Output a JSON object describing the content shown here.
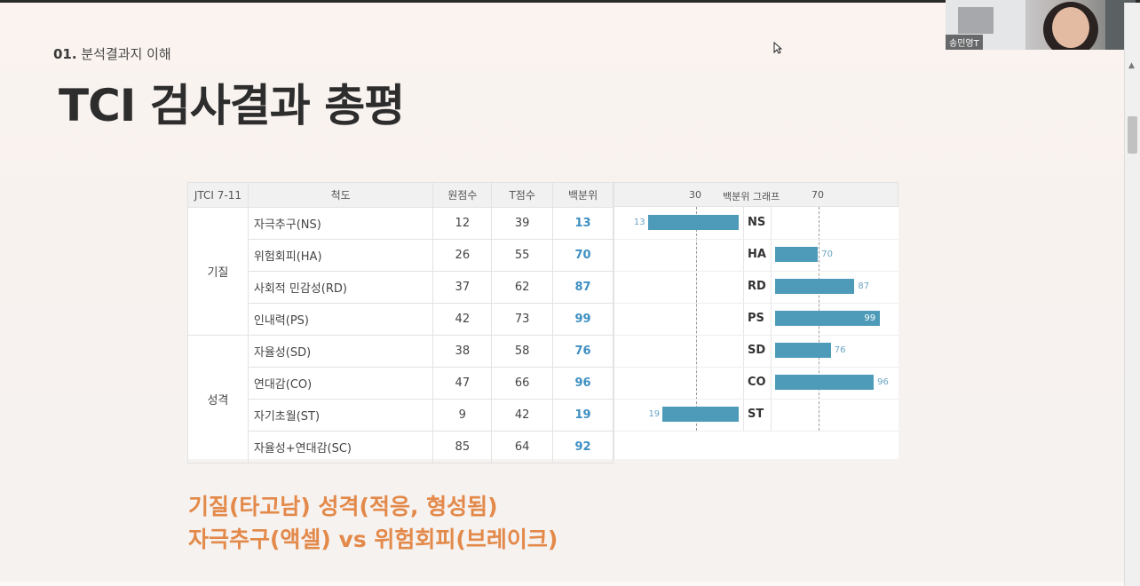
{
  "slide": {
    "section_number": "01.",
    "section_title": "분석결과지 이해",
    "title": "TCI 검사결과 총평",
    "captions": [
      "기질(타고남) 성격(적응, 형성됨)",
      "자극추구(액셀) vs 위험회피(브레이크)"
    ]
  },
  "table": {
    "headers": {
      "form": "JTCI 7-11",
      "scale": "척도",
      "raw": "원점수",
      "t": "T점수",
      "pct": "백분위",
      "graph_30": "30",
      "graph_title": "백분위 그래프",
      "graph_70": "70"
    },
    "groups": [
      {
        "name": "기질",
        "rows": [
          {
            "scale": "자극추구(NS)",
            "raw": "12",
            "t": "39",
            "pct": "13",
            "abbr": "NS",
            "percentile": 13
          },
          {
            "scale": "위험회피(HA)",
            "raw": "26",
            "t": "55",
            "pct": "70",
            "abbr": "HA",
            "percentile": 70
          },
          {
            "scale": "사회적 민감성(RD)",
            "raw": "37",
            "t": "62",
            "pct": "87",
            "abbr": "RD",
            "percentile": 87
          },
          {
            "scale": "인내력(PS)",
            "raw": "42",
            "t": "73",
            "pct": "99",
            "abbr": "PS",
            "percentile": 99
          }
        ]
      },
      {
        "name": "성격",
        "rows": [
          {
            "scale": "자율성(SD)",
            "raw": "38",
            "t": "58",
            "pct": "76",
            "abbr": "SD",
            "percentile": 76
          },
          {
            "scale": "연대감(CO)",
            "raw": "47",
            "t": "66",
            "pct": "96",
            "abbr": "CO",
            "percentile": 96
          },
          {
            "scale": "자기초월(ST)",
            "raw": "9",
            "t": "42",
            "pct": "19",
            "abbr": "ST",
            "percentile": 19
          },
          {
            "scale": "자율성+연대감(SC)",
            "raw": "85",
            "t": "64",
            "pct": "92",
            "abbr": "",
            "percentile": null
          }
        ]
      }
    ]
  },
  "webcam": {
    "participant_name": "송민영T"
  },
  "colors": {
    "bar": "#4e9bb9",
    "percentile_text": "#3d8fc2",
    "caption": "#e3894a"
  }
}
